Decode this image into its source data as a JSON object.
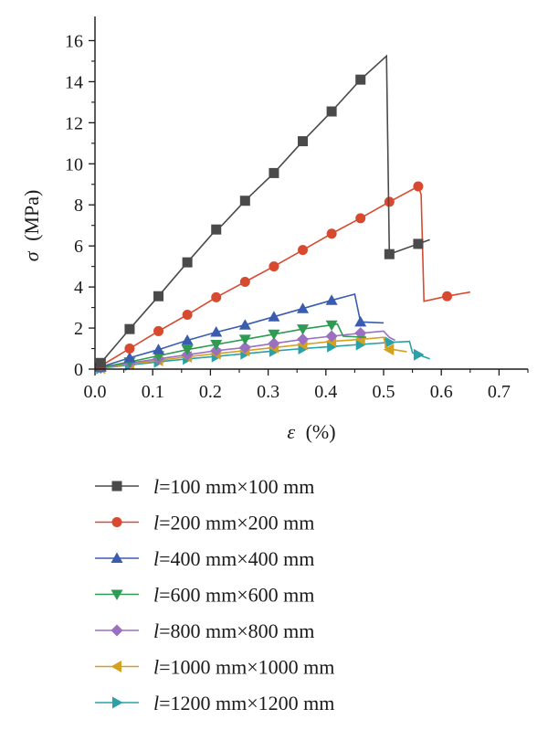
{
  "chart_data": {
    "type": "line",
    "xlabel": {
      "symbol": "ε",
      "unit": "(%)"
    },
    "ylabel": {
      "symbol": "σ",
      "unit": "(MPa)"
    },
    "xlim": [
      0,
      0.75
    ],
    "ylim": [
      0,
      17
    ],
    "xticks": [
      "0.0",
      "0.1",
      "0.2",
      "0.3",
      "0.4",
      "0.5",
      "0.6",
      "0.7"
    ],
    "yticks": [
      "0",
      "2",
      "4",
      "6",
      "8",
      "10",
      "12",
      "14",
      "16"
    ],
    "grid": false,
    "legend_position": "below",
    "series": [
      {
        "name": "l=100 mm×100 mm",
        "name_prefix": "l",
        "name_rest": "=100 mm×100 mm",
        "color": "#4a4a4a",
        "marker": "square",
        "line": [
          [
            0,
            0.2
          ],
          [
            0.01,
            0.3
          ],
          [
            0.06,
            1.95
          ],
          [
            0.11,
            3.55
          ],
          [
            0.16,
            5.2
          ],
          [
            0.21,
            6.8
          ],
          [
            0.22,
            7.0
          ],
          [
            0.26,
            8.2
          ],
          [
            0.31,
            9.55
          ],
          [
            0.36,
            11.1
          ],
          [
            0.41,
            12.55
          ],
          [
            0.46,
            14.1
          ],
          [
            0.505,
            15.25
          ],
          [
            0.51,
            5.6
          ],
          [
            0.56,
            6.1
          ],
          [
            0.58,
            6.3
          ]
        ],
        "markers": [
          [
            0.01,
            0.3
          ],
          [
            0.06,
            1.95
          ],
          [
            0.11,
            3.55
          ],
          [
            0.16,
            5.2
          ],
          [
            0.21,
            6.8
          ],
          [
            0.26,
            8.2
          ],
          [
            0.31,
            9.55
          ],
          [
            0.36,
            11.1
          ],
          [
            0.41,
            12.55
          ],
          [
            0.46,
            14.1
          ],
          [
            0.51,
            5.6
          ],
          [
            0.56,
            6.1
          ]
        ]
      },
      {
        "name": "l=200 mm×200 mm",
        "name_prefix": "l",
        "name_rest": "=200 mm×200 mm",
        "color": "#d84a30",
        "marker": "circle",
        "line": [
          [
            0,
            0.1
          ],
          [
            0.01,
            0.15
          ],
          [
            0.06,
            1.0
          ],
          [
            0.11,
            1.85
          ],
          [
            0.16,
            2.65
          ],
          [
            0.21,
            3.5
          ],
          [
            0.26,
            4.25
          ],
          [
            0.31,
            5.0
          ],
          [
            0.36,
            5.8
          ],
          [
            0.41,
            6.6
          ],
          [
            0.46,
            7.35
          ],
          [
            0.51,
            8.15
          ],
          [
            0.56,
            8.9
          ],
          [
            0.565,
            8.5
          ],
          [
            0.57,
            3.3
          ],
          [
            0.61,
            3.55
          ],
          [
            0.65,
            3.75
          ]
        ],
        "markers": [
          [
            0.01,
            0.15
          ],
          [
            0.06,
            1.0
          ],
          [
            0.11,
            1.85
          ],
          [
            0.16,
            2.65
          ],
          [
            0.21,
            3.5
          ],
          [
            0.26,
            4.25
          ],
          [
            0.31,
            5.0
          ],
          [
            0.36,
            5.8
          ],
          [
            0.41,
            6.6
          ],
          [
            0.46,
            7.35
          ],
          [
            0.51,
            8.15
          ],
          [
            0.56,
            8.9
          ],
          [
            0.61,
            3.55
          ]
        ]
      },
      {
        "name": "l=400 mm×400 mm",
        "name_prefix": "l",
        "name_rest": "=400 mm×400 mm",
        "color": "#3a5cb0",
        "marker": "triangle-up",
        "line": [
          [
            0,
            0.05
          ],
          [
            0.01,
            0.1
          ],
          [
            0.06,
            0.55
          ],
          [
            0.11,
            0.95
          ],
          [
            0.16,
            1.4
          ],
          [
            0.21,
            1.8
          ],
          [
            0.26,
            2.15
          ],
          [
            0.31,
            2.55
          ],
          [
            0.36,
            2.95
          ],
          [
            0.41,
            3.35
          ],
          [
            0.45,
            3.65
          ],
          [
            0.46,
            2.3
          ],
          [
            0.5,
            2.25
          ]
        ],
        "markers": [
          [
            0.01,
            0.1
          ],
          [
            0.06,
            0.55
          ],
          [
            0.11,
            0.95
          ],
          [
            0.16,
            1.4
          ],
          [
            0.21,
            1.8
          ],
          [
            0.26,
            2.15
          ],
          [
            0.31,
            2.55
          ],
          [
            0.36,
            2.95
          ],
          [
            0.41,
            3.35
          ],
          [
            0.46,
            2.3
          ]
        ]
      },
      {
        "name": "l=600 mm×600 mm",
        "name_prefix": "l",
        "name_rest": "=600 mm×600 mm",
        "color": "#2e9a52",
        "marker": "triangle-down",
        "line": [
          [
            0,
            0.05
          ],
          [
            0.01,
            0.08
          ],
          [
            0.06,
            0.35
          ],
          [
            0.11,
            0.65
          ],
          [
            0.16,
            0.95
          ],
          [
            0.21,
            1.2
          ],
          [
            0.26,
            1.45
          ],
          [
            0.31,
            1.7
          ],
          [
            0.36,
            1.95
          ],
          [
            0.41,
            2.15
          ],
          [
            0.42,
            2.2
          ],
          [
            0.43,
            1.6
          ],
          [
            0.47,
            1.55
          ]
        ],
        "markers": [
          [
            0.01,
            0.08
          ],
          [
            0.06,
            0.35
          ],
          [
            0.11,
            0.65
          ],
          [
            0.16,
            0.95
          ],
          [
            0.21,
            1.2
          ],
          [
            0.26,
            1.45
          ],
          [
            0.31,
            1.7
          ],
          [
            0.36,
            1.95
          ],
          [
            0.41,
            2.15
          ]
        ]
      },
      {
        "name": "l=800 mm×800 mm",
        "name_prefix": "l",
        "name_rest": "=800 mm×800 mm",
        "color": "#9a70c0",
        "marker": "diamond",
        "line": [
          [
            0,
            0.04
          ],
          [
            0.01,
            0.06
          ],
          [
            0.06,
            0.3
          ],
          [
            0.11,
            0.5
          ],
          [
            0.16,
            0.7
          ],
          [
            0.21,
            0.9
          ],
          [
            0.26,
            1.05
          ],
          [
            0.31,
            1.25
          ],
          [
            0.36,
            1.45
          ],
          [
            0.41,
            1.6
          ],
          [
            0.46,
            1.75
          ],
          [
            0.5,
            1.85
          ],
          [
            0.51,
            1.55
          ],
          [
            0.52,
            1.4
          ]
        ],
        "markers": [
          [
            0.01,
            0.06
          ],
          [
            0.06,
            0.3
          ],
          [
            0.11,
            0.5
          ],
          [
            0.16,
            0.7
          ],
          [
            0.21,
            0.9
          ],
          [
            0.26,
            1.05
          ],
          [
            0.31,
            1.25
          ],
          [
            0.36,
            1.45
          ],
          [
            0.41,
            1.6
          ],
          [
            0.46,
            1.75
          ]
        ]
      },
      {
        "name": "l=1000 mm×1000 mm",
        "name_prefix": "l",
        "name_rest": "=1000 mm×1000 mm",
        "color": "#d4a020",
        "marker": "triangle-left",
        "line": [
          [
            0,
            0.03
          ],
          [
            0.01,
            0.05
          ],
          [
            0.06,
            0.25
          ],
          [
            0.11,
            0.42
          ],
          [
            0.16,
            0.6
          ],
          [
            0.21,
            0.75
          ],
          [
            0.26,
            0.9
          ],
          [
            0.31,
            1.05
          ],
          [
            0.36,
            1.2
          ],
          [
            0.41,
            1.35
          ],
          [
            0.46,
            1.45
          ],
          [
            0.5,
            1.55
          ],
          [
            0.505,
            1.0
          ],
          [
            0.54,
            0.85
          ]
        ],
        "markers": [
          [
            0.01,
            0.05
          ],
          [
            0.06,
            0.25
          ],
          [
            0.11,
            0.42
          ],
          [
            0.16,
            0.6
          ],
          [
            0.21,
            0.75
          ],
          [
            0.26,
            0.9
          ],
          [
            0.31,
            1.05
          ],
          [
            0.36,
            1.2
          ],
          [
            0.41,
            1.35
          ],
          [
            0.46,
            1.45
          ],
          [
            0.51,
            0.95
          ]
        ]
      },
      {
        "name": "l=1200 mm×1200 mm",
        "name_prefix": "l",
        "name_rest": "=1200 mm×1200 mm",
        "color": "#2aa0a8",
        "marker": "triangle-right",
        "line": [
          [
            0,
            0.02
          ],
          [
            0.01,
            0.04
          ],
          [
            0.06,
            0.2
          ],
          [
            0.11,
            0.35
          ],
          [
            0.16,
            0.5
          ],
          [
            0.21,
            0.62
          ],
          [
            0.26,
            0.75
          ],
          [
            0.31,
            0.88
          ],
          [
            0.36,
            1.0
          ],
          [
            0.41,
            1.1
          ],
          [
            0.46,
            1.2
          ],
          [
            0.51,
            1.3
          ],
          [
            0.545,
            1.35
          ],
          [
            0.55,
            0.8
          ],
          [
            0.58,
            0.5
          ]
        ],
        "markers": [
          [
            0.01,
            0.04
          ],
          [
            0.06,
            0.2
          ],
          [
            0.11,
            0.35
          ],
          [
            0.16,
            0.5
          ],
          [
            0.21,
            0.62
          ],
          [
            0.26,
            0.75
          ],
          [
            0.31,
            0.88
          ],
          [
            0.36,
            1.0
          ],
          [
            0.41,
            1.1
          ],
          [
            0.46,
            1.2
          ],
          [
            0.51,
            1.3
          ],
          [
            0.56,
            0.7
          ]
        ]
      }
    ]
  }
}
